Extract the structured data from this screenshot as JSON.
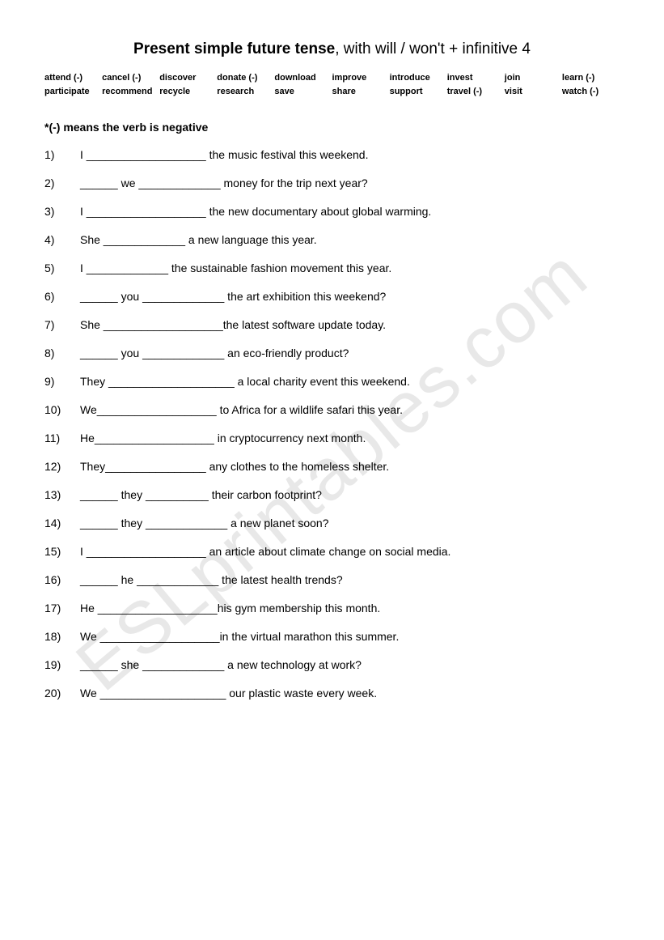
{
  "title": {
    "bold": "Present simple future tense",
    "normal": ", with will / won't + infinitive  4"
  },
  "word_bank": [
    "attend (-)",
    "cancel (-)",
    "discover",
    "donate (-)",
    "download",
    "improve",
    "introduce",
    "invest",
    "join",
    "learn (-)",
    "participate",
    "recommend",
    "recycle",
    "research",
    "save",
    "share",
    "support",
    "travel (-)",
    "visit",
    "watch (-)"
  ],
  "note": "*(-) means the verb is negative",
  "questions": [
    {
      "num": "1)",
      "text": "I ___________________ the music festival this weekend."
    },
    {
      "num": "2)",
      "text": "______ we _____________ money for the trip next year?"
    },
    {
      "num": "3)",
      "text": "I ___________________ the new documentary about global warming."
    },
    {
      "num": "4)",
      "text": "She _____________ a new language this year."
    },
    {
      "num": "5)",
      "text": "I _____________ the sustainable fashion movement this year."
    },
    {
      "num": "6)",
      "text": "______ you _____________ the art exhibition this weekend?"
    },
    {
      "num": "7)",
      "text": "She ___________________the latest software update today."
    },
    {
      "num": "8)",
      "text": "______ you _____________ an eco-friendly product?"
    },
    {
      "num": "9)",
      "text": "They ____________________ a local charity event this weekend."
    },
    {
      "num": "10)",
      "text": "We___________________ to Africa for a wildlife safari this year."
    },
    {
      "num": "11)",
      "text": "He___________________ in cryptocurrency next month."
    },
    {
      "num": "12)",
      "text": "They________________ any clothes to the homeless shelter."
    },
    {
      "num": "13)",
      "text": "______ they __________ their carbon footprint?"
    },
    {
      "num": "14)",
      "text": "______ they _____________ a new planet soon?"
    },
    {
      "num": "15)",
      "text": "I ___________________ an article about climate change on social media."
    },
    {
      "num": "16)",
      "text": "______ he _____________ the latest health trends?"
    },
    {
      "num": "17)",
      "text": "He ___________________his gym membership this month."
    },
    {
      "num": "18)",
      "text": "We ___________________in the virtual marathon this summer."
    },
    {
      "num": "19)",
      "text": "______ she _____________ a new technology at work?"
    },
    {
      "num": "20)",
      "text": "We ____________________ our plastic waste every week."
    }
  ],
  "watermark": "ESLprintables.com"
}
